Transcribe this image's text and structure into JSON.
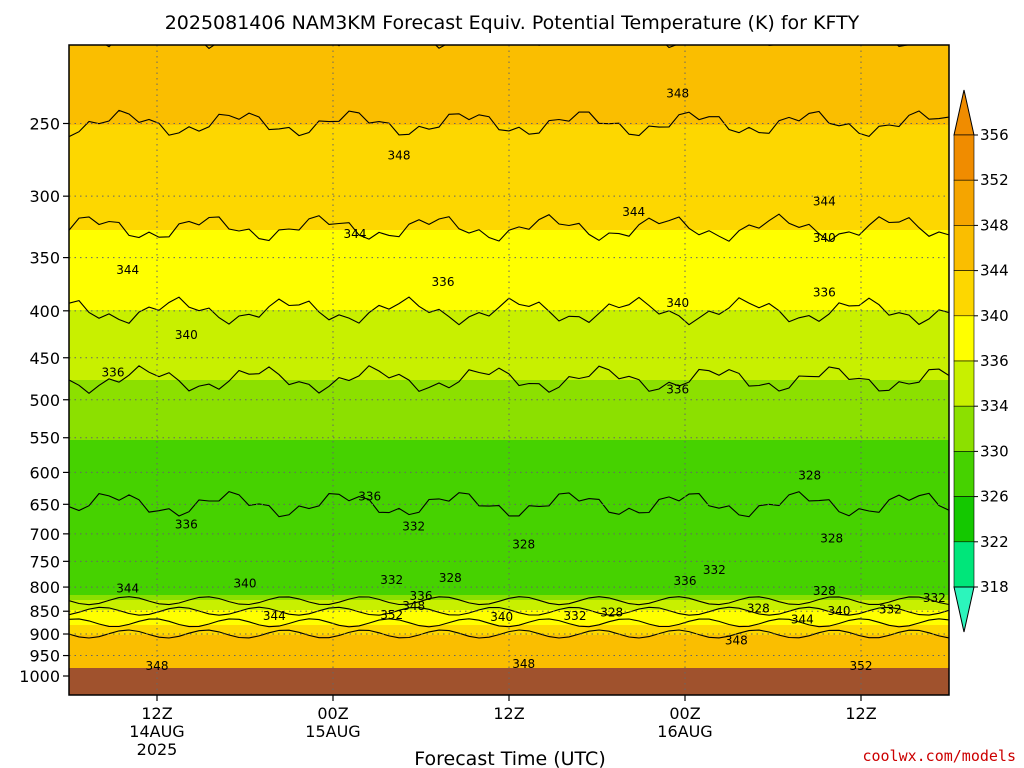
{
  "chart_data": {
    "type": "heatmap",
    "title": "2025081406 NAM3KM Forecast Equiv. Potential Temperature (K) for KFTY",
    "xlabel": "Forecast Time (UTC)",
    "ylabel": "",
    "y_scale": "log-pressure",
    "ylim": [
      1000,
      200
    ],
    "y_ticks": [
      250,
      300,
      350,
      400,
      450,
      500,
      550,
      600,
      650,
      700,
      750,
      800,
      850,
      900,
      950,
      1000
    ],
    "x_ticks": [
      {
        "hour": 6,
        "line1": "12Z",
        "line2": "14AUG",
        "line3": "2025"
      },
      {
        "hour": 18,
        "line1": "00Z",
        "line2": "15AUG",
        "line3": ""
      },
      {
        "hour": 30,
        "line1": "12Z",
        "line2": "",
        "line3": ""
      },
      {
        "hour": 42,
        "line1": "00Z",
        "line2": "16AUG",
        "line3": ""
      },
      {
        "hour": 54,
        "line1": "12Z",
        "line2": "",
        "line3": ""
      }
    ],
    "xlim_hours": [
      0,
      60
    ],
    "grid": true,
    "colorbar": {
      "ticks": [
        356,
        352,
        348,
        344,
        340,
        336,
        334,
        330,
        326,
        322,
        318
      ],
      "colors": [
        "#f08c00",
        "#f5a500",
        "#fabe00",
        "#fdd700",
        "#ffff00",
        "#c8f000",
        "#8ce000",
        "#46d200",
        "#14c800",
        "#00e67a",
        "#2cf5bc"
      ]
    },
    "ground_color": "#a0522d",
    "profile_levels": [
      {
        "p": 200,
        "theta_e": 352
      },
      {
        "p": 250,
        "theta_e": 348
      },
      {
        "p": 300,
        "theta_e": 345
      },
      {
        "p": 350,
        "theta_e": 343
      },
      {
        "p": 400,
        "theta_e": 340
      },
      {
        "p": 450,
        "theta_e": 337
      },
      {
        "p": 500,
        "theta_e": 335
      },
      {
        "p": 550,
        "theta_e": 334
      },
      {
        "p": 600,
        "theta_e": 333
      },
      {
        "p": 650,
        "theta_e": 332
      },
      {
        "p": 700,
        "theta_e": 331
      },
      {
        "p": 750,
        "theta_e": 330
      },
      {
        "p": 800,
        "theta_e": 331
      },
      {
        "p": 850,
        "theta_e": 340
      },
      {
        "p": 900,
        "theta_e": 348
      },
      {
        "p": 950,
        "theta_e": 350
      },
      {
        "p": 975,
        "theta_e": 351
      }
    ],
    "contour_labels": [
      {
        "text": "348",
        "hour": 41.5,
        "p": 232
      },
      {
        "text": "348",
        "hour": 22.5,
        "p": 271
      },
      {
        "text": "344",
        "hour": 38.5,
        "p": 312
      },
      {
        "text": "344",
        "hour": 51.5,
        "p": 304
      },
      {
        "text": "344",
        "hour": 19.5,
        "p": 330
      },
      {
        "text": "340",
        "hour": 51.5,
        "p": 333
      },
      {
        "text": "344",
        "hour": 4.0,
        "p": 361
      },
      {
        "text": "336",
        "hour": 25.5,
        "p": 372
      },
      {
        "text": "340",
        "hour": 41.5,
        "p": 392
      },
      {
        "text": "336",
        "hour": 51.5,
        "p": 382
      },
      {
        "text": "340",
        "hour": 8.0,
        "p": 425
      },
      {
        "text": "336",
        "hour": 3.0,
        "p": 467
      },
      {
        "text": "336",
        "hour": 41.5,
        "p": 487
      },
      {
        "text": "328",
        "hour": 50.5,
        "p": 605
      },
      {
        "text": "336",
        "hour": 20.5,
        "p": 637
      },
      {
        "text": "336",
        "hour": 8.0,
        "p": 684
      },
      {
        "text": "332",
        "hour": 23.5,
        "p": 687
      },
      {
        "text": "328",
        "hour": 52.0,
        "p": 708
      },
      {
        "text": "328",
        "hour": 31.0,
        "p": 719
      },
      {
        "text": "332",
        "hour": 44.0,
        "p": 766
      },
      {
        "text": "328",
        "hour": 26.0,
        "p": 782
      },
      {
        "text": "332",
        "hour": 22.0,
        "p": 786
      },
      {
        "text": "336",
        "hour": 42.0,
        "p": 788
      },
      {
        "text": "344",
        "hour": 4.0,
        "p": 803
      },
      {
        "text": "340",
        "hour": 12.0,
        "p": 793
      },
      {
        "text": "328",
        "hour": 51.5,
        "p": 808
      },
      {
        "text": "336",
        "hour": 24.0,
        "p": 818
      },
      {
        "text": "348",
        "hour": 23.5,
        "p": 839
      },
      {
        "text": "328",
        "hour": 47.0,
        "p": 844
      },
      {
        "text": "340",
        "hour": 52.5,
        "p": 849
      },
      {
        "text": "332",
        "hour": 56.0,
        "p": 846
      },
      {
        "text": "332",
        "hour": 59.0,
        "p": 822
      },
      {
        "text": "344",
        "hour": 14.0,
        "p": 860
      },
      {
        "text": "352",
        "hour": 22.0,
        "p": 858
      },
      {
        "text": "340",
        "hour": 29.5,
        "p": 862
      },
      {
        "text": "332",
        "hour": 34.5,
        "p": 860
      },
      {
        "text": "328",
        "hour": 37.0,
        "p": 853
      },
      {
        "text": "344",
        "hour": 50.0,
        "p": 868
      },
      {
        "text": "348",
        "hour": 45.5,
        "p": 915
      },
      {
        "text": "348",
        "hour": 6.0,
        "p": 975
      },
      {
        "text": "348",
        "hour": 31.0,
        "p": 970
      },
      {
        "text": "352",
        "hour": 54.0,
        "p": 975
      }
    ]
  },
  "credit": "coolwx.com/models"
}
